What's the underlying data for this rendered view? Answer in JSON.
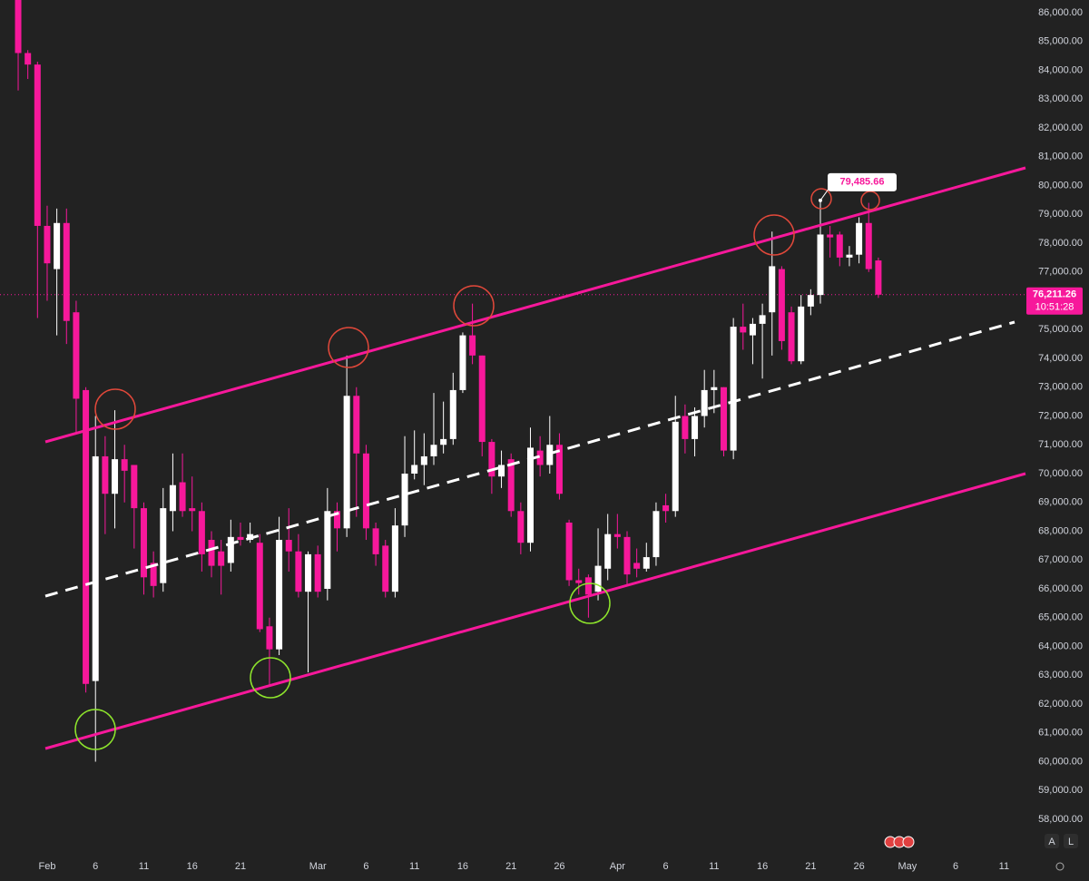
{
  "chart_data": {
    "type": "candlestick",
    "x": [
      -3,
      -2,
      -1,
      0,
      1,
      2,
      3,
      4,
      5,
      6,
      7,
      8,
      9,
      10,
      11,
      12,
      13,
      14,
      15,
      16,
      17,
      18,
      19,
      20,
      21,
      22,
      23,
      24,
      25,
      26,
      27,
      28,
      29,
      30,
      31,
      32,
      33,
      34,
      35,
      36,
      37,
      38,
      39,
      40,
      41,
      42,
      43,
      44,
      45,
      46,
      47,
      48,
      49,
      50,
      51,
      52,
      53,
      54,
      55,
      56,
      57,
      58,
      59,
      60,
      61,
      62,
      63,
      64,
      65,
      66,
      67,
      68,
      69,
      70,
      71,
      72,
      73,
      74,
      75,
      76,
      77,
      78,
      79,
      80,
      81,
      82,
      83,
      84,
      85,
      86
    ],
    "open": [
      86600,
      84600,
      84200,
      78600,
      77100,
      78700,
      75600,
      72900,
      62800,
      70600,
      69300,
      70500,
      70300,
      68800,
      66900,
      66200,
      68700,
      69700,
      68800,
      68700,
      67700,
      67300,
      66900,
      67800,
      67700,
      67600,
      64700,
      63900,
      67700,
      67300,
      65900,
      67200,
      66000,
      68700,
      68100,
      72700,
      70700,
      68100,
      67500,
      65900,
      68200,
      70000,
      70300,
      70600,
      71000,
      71200,
      72900,
      74800,
      74100,
      71100,
      69900,
      70500,
      68700,
      67600,
      70800,
      70300,
      71000,
      68300,
      66300,
      66400,
      65900,
      66700,
      67900,
      67800,
      66900,
      66700,
      67100,
      68900,
      68700,
      72000,
      71200,
      72000,
      72900,
      73000,
      70800,
      75100,
      74800,
      75200,
      75600,
      77100,
      75600,
      73900,
      75800,
      76200,
      78300,
      78300,
      77500,
      77600,
      78700,
      77400
    ],
    "high": [
      86800,
      84700,
      84300,
      79300,
      79200,
      79200,
      76000,
      73000,
      72000,
      71300,
      72200,
      71000,
      70300,
      69000,
      67300,
      69500,
      70700,
      70700,
      69900,
      69000,
      68000,
      67700,
      68400,
      68300,
      68300,
      67900,
      65000,
      68500,
      68800,
      67900,
      67300,
      67500,
      69500,
      69000,
      74100,
      73000,
      71000,
      68300,
      67700,
      68800,
      71300,
      71500,
      71400,
      72800,
      72500,
      73500,
      74900,
      75900,
      74100,
      71200,
      70800,
      70700,
      69000,
      71600,
      71300,
      72000,
      71400,
      68400,
      66700,
      66500,
      68100,
      68600,
      68600,
      68000,
      67400,
      67600,
      69000,
      69300,
      72700,
      72400,
      72300,
      73600,
      73600,
      73000,
      75400,
      75900,
      75400,
      75900,
      78400,
      77200,
      75800,
      76200,
      76400,
      79485.66,
      78600,
      78400,
      77900,
      78900,
      79400,
      77500
    ],
    "low": [
      83300,
      83700,
      75400,
      76000,
      74800,
      74500,
      71400,
      62400,
      60000,
      67900,
      68100,
      69000,
      67400,
      65800,
      65700,
      65900,
      68000,
      68500,
      68000,
      66600,
      66400,
      65800,
      66600,
      67500,
      67600,
      64500,
      62600,
      63700,
      66600,
      65700,
      63100,
      65700,
      65600,
      67300,
      67800,
      68500,
      67700,
      66800,
      65700,
      65700,
      67800,
      69800,
      69600,
      70300,
      70700,
      71000,
      72800,
      73800,
      70600,
      69300,
      69500,
      68500,
      67200,
      67300,
      69900,
      70000,
      69100,
      66100,
      65800,
      65000,
      65600,
      66300,
      67400,
      66100,
      66400,
      66600,
      66800,
      68300,
      68500,
      70700,
      70600,
      71600,
      72100,
      70600,
      70500,
      74300,
      73800,
      73300,
      74100,
      74300,
      73800,
      73800,
      75500,
      75900,
      77500,
      77200,
      77200,
      77300,
      77000,
      76100
    ],
    "close": [
      84600,
      84200,
      78600,
      77300,
      78700,
      75300,
      72600,
      62700,
      70600,
      69300,
      70500,
      70100,
      68800,
      66400,
      66100,
      68800,
      69600,
      68700,
      68700,
      67200,
      66800,
      66800,
      67800,
      67700,
      67900,
      64600,
      63900,
      67700,
      67300,
      65900,
      67200,
      65900,
      68700,
      68100,
      72700,
      70700,
      68100,
      67200,
      65900,
      68200,
      70000,
      70300,
      70600,
      71000,
      71200,
      72900,
      74800,
      74100,
      71100,
      69900,
      70300,
      68700,
      67600,
      70900,
      70300,
      71000,
      69300,
      66300,
      66200,
      65800,
      66800,
      67900,
      67800,
      66500,
      66700,
      67100,
      68700,
      68700,
      71800,
      71200,
      72000,
      72900,
      73000,
      70800,
      75100,
      74900,
      75200,
      75500,
      77200,
      74600,
      73900,
      75800,
      76200,
      78300,
      78200,
      77500,
      77600,
      78700,
      77100,
      76211.26
    ],
    "up_color": "#ffffff",
    "down_color": "#f7189b",
    "xlim": [
      -4.88,
      101.22
    ],
    "xticks": [
      {
        "value": 0,
        "label": "Feb"
      },
      {
        "value": 5,
        "label": "6"
      },
      {
        "value": 10,
        "label": "11"
      },
      {
        "value": 15,
        "label": "16"
      },
      {
        "value": 20,
        "label": "21"
      },
      {
        "value": 28,
        "label": "Mar"
      },
      {
        "value": 33,
        "label": "6"
      },
      {
        "value": 38,
        "label": "11"
      },
      {
        "value": 43,
        "label": "16"
      },
      {
        "value": 48,
        "label": "21"
      },
      {
        "value": 53,
        "label": "26"
      },
      {
        "value": 59,
        "label": "Apr"
      },
      {
        "value": 64,
        "label": "6"
      },
      {
        "value": 69,
        "label": "11"
      },
      {
        "value": 74,
        "label": "16"
      },
      {
        "value": 79,
        "label": "21"
      },
      {
        "value": 84,
        "label": "26"
      },
      {
        "value": 89,
        "label": "May"
      },
      {
        "value": 94,
        "label": "6"
      },
      {
        "value": 99,
        "label": "11"
      }
    ],
    "ylim": [
      57622,
      86441
    ],
    "yticks": [
      {
        "value": 58000,
        "label": "58,000.00"
      },
      {
        "value": 59000,
        "label": "59,000.00"
      },
      {
        "value": 60000,
        "label": "60,000.00"
      },
      {
        "value": 61000,
        "label": "61,000.00"
      },
      {
        "value": 62000,
        "label": "62,000.00"
      },
      {
        "value": 63000,
        "label": "63,000.00"
      },
      {
        "value": 64000,
        "label": "64,000.00"
      },
      {
        "value": 65000,
        "label": "65,000.00"
      },
      {
        "value": 66000,
        "label": "66,000.00"
      },
      {
        "value": 67000,
        "label": "67,000.00"
      },
      {
        "value": 68000,
        "label": "68,000.00"
      },
      {
        "value": 69000,
        "label": "69,000.00"
      },
      {
        "value": 70000,
        "label": "70,000.00"
      },
      {
        "value": 71000,
        "label": "71,000.00"
      },
      {
        "value": 72000,
        "label": "72,000.00"
      },
      {
        "value": 73000,
        "label": "73,000.00"
      },
      {
        "value": 74000,
        "label": "74,000.00"
      },
      {
        "value": 75000,
        "label": "75,000.00"
      },
      {
        "value": 76000,
        "label": "76,000.00"
      },
      {
        "value": 77000,
        "label": "77,000.00"
      },
      {
        "value": 78000,
        "label": "78,000.00"
      },
      {
        "value": 79000,
        "label": "79,000.00"
      },
      {
        "value": 80000,
        "label": "80,000.00"
      },
      {
        "value": 81000,
        "label": "81,000.00"
      },
      {
        "value": 82000,
        "label": "82,000.00"
      },
      {
        "value": 83000,
        "label": "83,000.00"
      },
      {
        "value": 84000,
        "label": "84,000.00"
      },
      {
        "value": 85000,
        "label": "85,000.00"
      },
      {
        "value": 86000,
        "label": "86,000.00"
      }
    ],
    "high_label": {
      "value": 79485.66,
      "label": "79,485.66"
    },
    "last_price": {
      "value": 76211.26,
      "label": "76,211.26"
    },
    "countdown": "10:51:28",
    "scale_buttons": [
      "A",
      "L"
    ]
  }
}
